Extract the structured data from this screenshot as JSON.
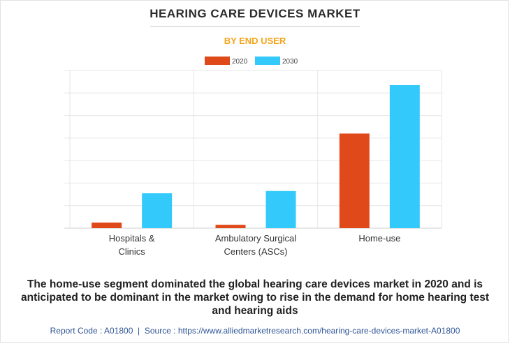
{
  "title": "HEARING CARE DEVICES MARKET",
  "subtitle": "BY END USER",
  "caption": "The home-use segment dominated the global hearing care devices market in 2020 and is anticipated to be dominant in the market owing to rise in the demand for home hearing test and hearing aids",
  "footer": {
    "report_code_label": "Report Code : A01800",
    "separator": "|",
    "source_label": "Source : https://www.alliedmarketresearch.com/hearing-care-devices-market-A01800"
  },
  "colors": {
    "s2020": "#e04a1a",
    "s2030": "#33c9fb",
    "grid": "#e6e6e6"
  },
  "chart_data": {
    "type": "bar",
    "title": "HEARING CARE DEVICES MARKET",
    "subtitle": "BY END USER",
    "categories": [
      [
        "Hospitals &",
        "Clinics"
      ],
      [
        "Ambulatory Surgical",
        "Centers (ASCs)"
      ],
      [
        "Home-use"
      ]
    ],
    "series": [
      {
        "name": "2020",
        "values": [
          0.25,
          0.15,
          4.2
        ]
      },
      {
        "name": "2030",
        "values": [
          1.55,
          1.65,
          6.35
        ]
      }
    ],
    "ylim": [
      0,
      7
    ],
    "gridlines": 7,
    "legend": "top-center",
    "xlabel": "",
    "ylabel": ""
  }
}
